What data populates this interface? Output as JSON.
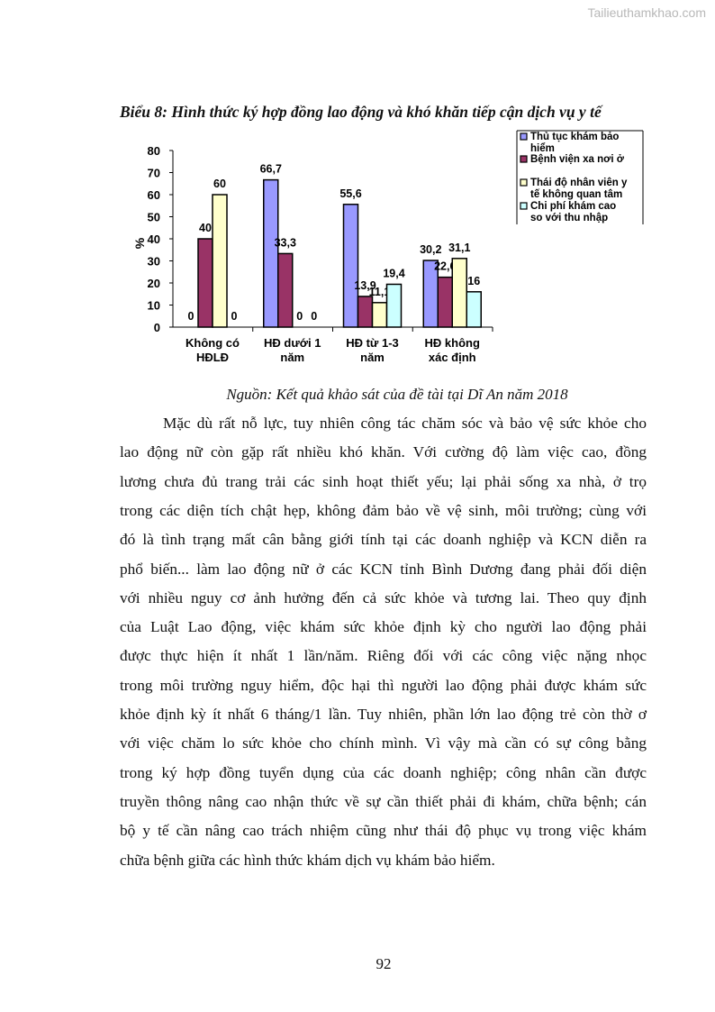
{
  "watermark": "Tailieuthamkhao.com",
  "title": "Biểu 8: Hình thức ký hợp đồng lao động và khó khăn tiếp cận dịch vụ y tế",
  "source": "Nguồn: Kết quả khảo sát của đề tài tại Dĩ An năm 2018",
  "paragraph_lines": [
    "Mặc dù rất nỗ lực, tuy nhiên công tác chăm sóc và bảo vệ sức khỏe cho",
    "lao động nữ còn gặp rất nhiều khó khăn. Với cường độ làm việc cao, đồng",
    "lương chưa đủ trang trải các sinh hoạt thiết yếu; lại phải sống xa nhà, ở trọ",
    "trong các diện tích chật hẹp, không đảm bảo về vệ sinh, môi trường; cùng với",
    "đó là tình trạng mất cân bằng giới tính tại các doanh nghiệp và KCN diễn ra",
    "phổ biến... làm lao động nữ ở các KCN tỉnh Bình Dương đang phải đối diện",
    "với nhiều nguy cơ ảnh hưởng đến cả sức khỏe và tương lai. Theo quy định",
    "của Luật Lao động, việc khám sức khỏe định kỳ cho người lao động phải",
    "được thực hiện ít nhất 1 lần/năm. Riêng đối với các công việc nặng nhọc",
    "trong môi trường nguy hiểm, độc hại thì người lao động phải được khám sức",
    "khỏe định kỳ ít nhất 6 tháng/1 lần. Tuy nhiên, phần lớn lao động trẻ còn thờ ơ",
    "với việc chăm lo sức khỏe cho chính mình. Vì vậy mà cần có sự công bằng",
    "trong ký hợp đồng tuyển dụng của các doanh nghiệp; công nhân cần được",
    "truyền thông nâng cao nhận thức về sự cần thiết phải đi khám, chữa bệnh; cán",
    "bộ y tế cần nâng cao trách nhiệm cũng như thái độ phục vụ trong việc khám",
    "chữa bệnh giữa các hình thức khám dịch vụ khám bảo hiểm."
  ],
  "page_number": "92",
  "chart_data": {
    "type": "bar",
    "ylabel": "%",
    "ylim": [
      0,
      80
    ],
    "yticks": [
      "0",
      "10",
      "20",
      "30",
      "40",
      "50",
      "60",
      "70",
      "80"
    ],
    "categories": [
      [
        "Không có",
        "HĐLĐ"
      ],
      [
        "HĐ dưới 1",
        "năm"
      ],
      [
        "HĐ từ 1-3",
        "năm"
      ],
      [
        "HĐ không",
        "xác định"
      ]
    ],
    "legend_position": "top-right",
    "grid": false,
    "series": [
      {
        "name": "Thủ tục khám bảo hiểm",
        "legend_lines": [
          "Thủ tục khám bảo",
          "hiểm"
        ],
        "color": "#9999ff",
        "values": [
          0,
          66.7,
          55.6,
          30.2
        ],
        "labels": [
          "0",
          "66,7",
          "55,6",
          "30,2"
        ]
      },
      {
        "name": "Bệnh viện xa nơi ở",
        "legend_lines": [
          "Bệnh viện xa nơi ở"
        ],
        "color": "#993366",
        "values": [
          40,
          33.3,
          13.9,
          22.6
        ],
        "labels": [
          "40",
          "33,3",
          "13,9",
          "22,6"
        ]
      },
      {
        "name": "Thái độ nhân viên y tế không quan tâm",
        "legend_lines": [
          "Thái độ nhân viên y",
          "tế không quan tâm"
        ],
        "color": "#ffffcc",
        "values": [
          60,
          0,
          11.1,
          31.1
        ],
        "labels": [
          "60",
          "0",
          "11,1",
          "31,1"
        ]
      },
      {
        "name": "Chi phí khám cao so với thu nhập",
        "legend_lines": [
          "Chi phí khám cao",
          "so với thu nhập"
        ],
        "color": "#ccffff",
        "values": [
          0,
          0,
          19.4,
          16
        ],
        "labels": [
          "0",
          "0",
          "19,4",
          "16"
        ]
      }
    ]
  }
}
